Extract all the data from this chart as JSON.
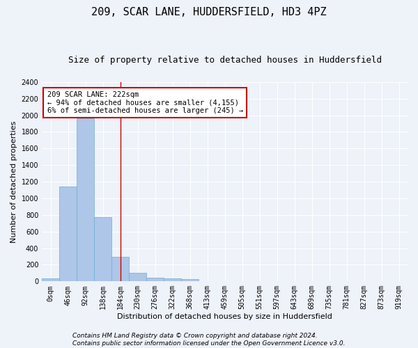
{
  "title": "209, SCAR LANE, HUDDERSFIELD, HD3 4PZ",
  "subtitle": "Size of property relative to detached houses in Huddersfield",
  "xlabel": "Distribution of detached houses by size in Huddersfield",
  "ylabel": "Number of detached properties",
  "bar_labels": [
    "0sqm",
    "46sqm",
    "92sqm",
    "138sqm",
    "184sqm",
    "230sqm",
    "276sqm",
    "322sqm",
    "368sqm",
    "413sqm",
    "459sqm",
    "505sqm",
    "551sqm",
    "597sqm",
    "643sqm",
    "689sqm",
    "735sqm",
    "781sqm",
    "827sqm",
    "873sqm",
    "919sqm"
  ],
  "bar_values": [
    35,
    1140,
    1960,
    770,
    300,
    105,
    48,
    38,
    25,
    0,
    0,
    0,
    0,
    0,
    0,
    0,
    0,
    0,
    0,
    0,
    0
  ],
  "bar_color": "#aec6e8",
  "bar_edgecolor": "#6baed6",
  "ylim": [
    0,
    2400
  ],
  "yticks": [
    0,
    200,
    400,
    600,
    800,
    1000,
    1200,
    1400,
    1600,
    1800,
    2000,
    2200,
    2400
  ],
  "vline_x": 4.5,
  "annotation_text": "209 SCAR LANE: 222sqm\n← 94% of detached houses are smaller (4,155)\n6% of semi-detached houses are larger (245) →",
  "annotation_box_color": "#ffffff",
  "annotation_box_edgecolor": "#cc0000",
  "footer_line1": "Contains HM Land Registry data © Crown copyright and database right 2024.",
  "footer_line2": "Contains public sector information licensed under the Open Government Licence v3.0.",
  "background_color": "#eef2f9",
  "grid_color": "#ffffff",
  "title_fontsize": 11,
  "subtitle_fontsize": 9,
  "axis_label_fontsize": 8,
  "tick_fontsize": 7,
  "annotation_fontsize": 7.5,
  "footer_fontsize": 6.5
}
